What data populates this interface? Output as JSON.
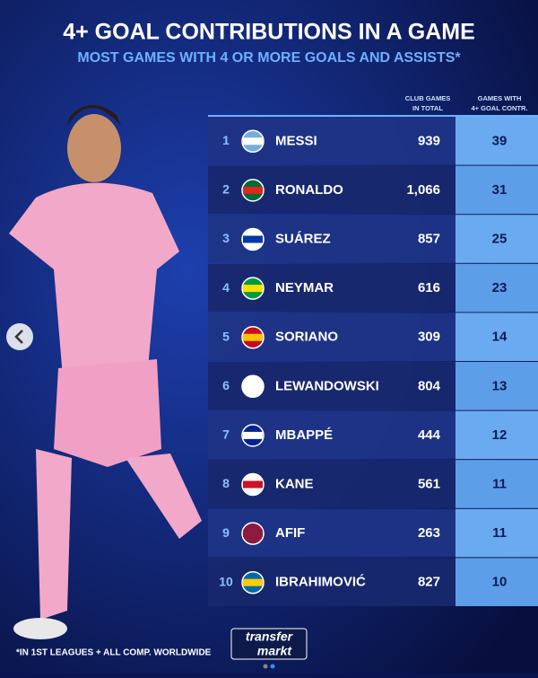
{
  "header": {
    "title": "4+ GOAL CONTRIBUTIONS IN A GAME",
    "subtitle": "MOST GAMES WITH 4 OR MORE GOALS AND ASSISTS*"
  },
  "table": {
    "columns": [
      [
        "CLUB GAMES",
        "IN TOTAL"
      ],
      [
        "GAMES WITH",
        "4+ GOAL CONTR."
      ]
    ],
    "rows": [
      [
        "1",
        "MESSI",
        "939",
        "39"
      ],
      [
        "2",
        "RONALDO",
        "1,066",
        "31"
      ],
      [
        "3",
        "SUÁREZ",
        "857",
        "25"
      ],
      [
        "4",
        "NEYMAR",
        "616",
        "23"
      ],
      [
        "5",
        "SORIANO",
        "309",
        "14"
      ],
      [
        "6",
        "LEWANDOWSKI",
        "804",
        "13"
      ],
      [
        "7",
        "MBAPPÉ",
        "444",
        "12"
      ],
      [
        "8",
        "KANE",
        "561",
        "11"
      ],
      [
        "9",
        "AFIF",
        "263",
        "11"
      ],
      [
        "10",
        "IBRAHIMOVIĆ",
        "827",
        "10"
      ]
    ]
  },
  "footnote": "*IN 1ST LEAGUES + ALL COMP. WORLDWIDE",
  "logo": [
    "transfer",
    "markt"
  ]
}
